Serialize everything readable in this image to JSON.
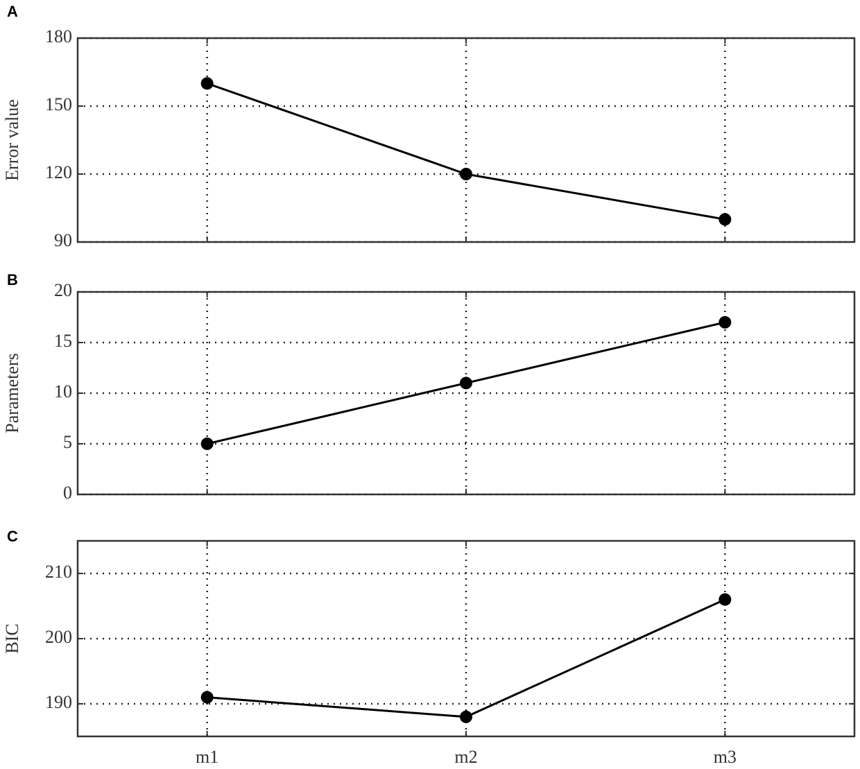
{
  "chart_data": [
    {
      "type": "line",
      "label": "A",
      "ylabel": "Error value",
      "values": [
        160,
        120,
        100
      ],
      "color": "#000000",
      "ylim": [
        90,
        180
      ],
      "yticks": [
        90,
        120,
        150,
        180
      ],
      "grid": true
    },
    {
      "type": "line",
      "label": "B",
      "ylabel": "Parameters",
      "values": [
        5,
        11,
        17
      ],
      "color": "#000000",
      "ylim": [
        0,
        20
      ],
      "yticks": [
        0,
        5,
        10,
        15,
        20
      ],
      "grid": true
    },
    {
      "type": "line",
      "label": "C",
      "ylabel": "BIC",
      "categories": [
        "m1",
        "m2",
        "m3"
      ],
      "values": [
        191,
        188,
        206
      ],
      "color": "#000000",
      "ylim": [
        185,
        215
      ],
      "yticks": [
        190,
        200,
        210
      ],
      "grid": true
    }
  ]
}
